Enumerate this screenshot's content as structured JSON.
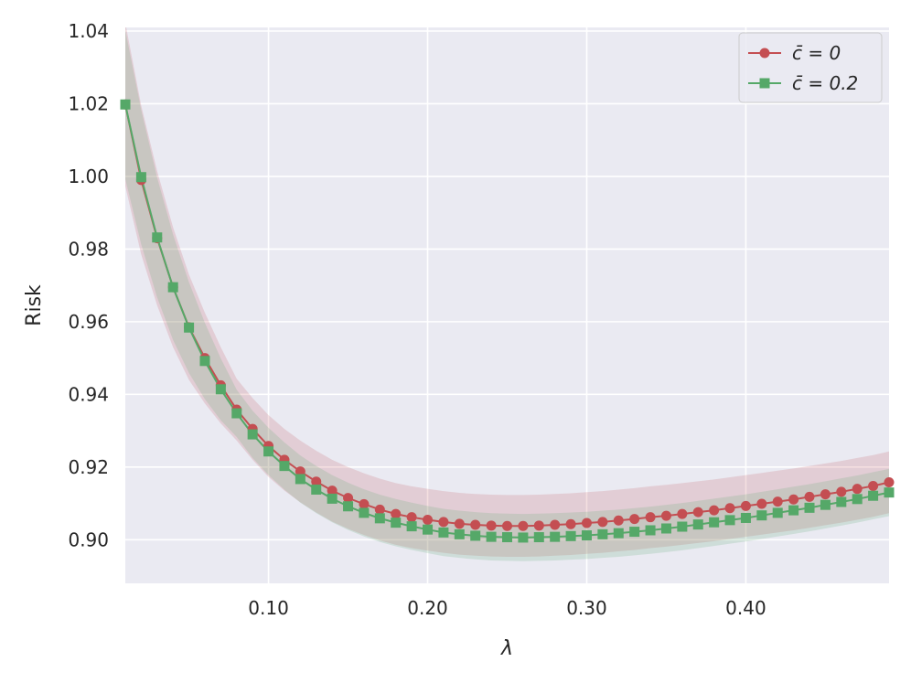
{
  "chart_data": {
    "type": "line",
    "xlabel": "λ",
    "ylabel": "Risk",
    "xlim": [
      0.01,
      0.49
    ],
    "ylim": [
      0.888,
      1.041
    ],
    "x_ticks": [
      0.1,
      0.2,
      0.3,
      0.4
    ],
    "x_tick_labels": [
      "0.10",
      "0.20",
      "0.30",
      "0.40"
    ],
    "y_ticks": [
      0.9,
      0.92,
      0.94,
      0.96,
      0.98,
      1.0,
      1.02,
      1.04
    ],
    "y_tick_labels": [
      "0.90",
      "0.92",
      "0.94",
      "0.96",
      "0.98",
      "1.00",
      "1.02",
      "1.04"
    ],
    "grid": true,
    "legend_position": "top-right",
    "x": [
      0.01,
      0.02,
      0.03,
      0.04,
      0.05,
      0.06,
      0.07,
      0.08,
      0.09,
      0.1,
      0.11,
      0.12,
      0.13,
      0.14,
      0.15,
      0.16,
      0.17,
      0.18,
      0.19,
      0.2,
      0.21,
      0.22,
      0.23,
      0.24,
      0.25,
      0.26,
      0.27,
      0.28,
      0.29,
      0.3,
      0.31,
      0.32,
      0.33,
      0.34,
      0.35,
      0.36,
      0.37,
      0.38,
      0.39,
      0.4,
      0.41,
      0.42,
      0.43,
      0.44,
      0.45,
      0.46,
      0.47,
      0.48,
      0.49
    ],
    "series": [
      {
        "name": "c̄ = 0",
        "color": "#c44e52",
        "marker": "circle",
        "values": [
          1.0198,
          0.999,
          0.983,
          0.9695,
          0.9585,
          0.95,
          0.9425,
          0.9358,
          0.9305,
          0.9258,
          0.922,
          0.9188,
          0.916,
          0.9135,
          0.9115,
          0.9098,
          0.9083,
          0.9071,
          0.9062,
          0.9055,
          0.9049,
          0.9044,
          0.9041,
          0.9039,
          0.9038,
          0.9038,
          0.9039,
          0.9041,
          0.9043,
          0.9046,
          0.9049,
          0.9053,
          0.9057,
          0.9062,
          0.9066,
          0.9071,
          0.9076,
          0.9081,
          0.9087,
          0.9093,
          0.9099,
          0.9105,
          0.9111,
          0.9118,
          0.9125,
          0.9132,
          0.914,
          0.9148,
          0.9158
        ],
        "band": 0.0085
      },
      {
        "name": "c̄ = 0.2",
        "color": "#55a868",
        "marker": "square",
        "values": [
          1.0198,
          0.9998,
          0.9832,
          0.9695,
          0.9584,
          0.9492,
          0.9414,
          0.9348,
          0.929,
          0.9243,
          0.9203,
          0.9167,
          0.9138,
          0.9113,
          0.9092,
          0.9074,
          0.9059,
          0.9047,
          0.9037,
          0.9028,
          0.902,
          0.9015,
          0.9011,
          0.9008,
          0.9007,
          0.9006,
          0.9007,
          0.9008,
          0.901,
          0.9012,
          0.9015,
          0.9018,
          0.9022,
          0.9026,
          0.9031,
          0.9036,
          0.9042,
          0.9048,
          0.9054,
          0.906,
          0.9067,
          0.9074,
          0.9081,
          0.9088,
          0.9096,
          0.9104,
          0.9112,
          0.9121,
          0.913
        ],
        "band": 0.0065
      }
    ]
  }
}
